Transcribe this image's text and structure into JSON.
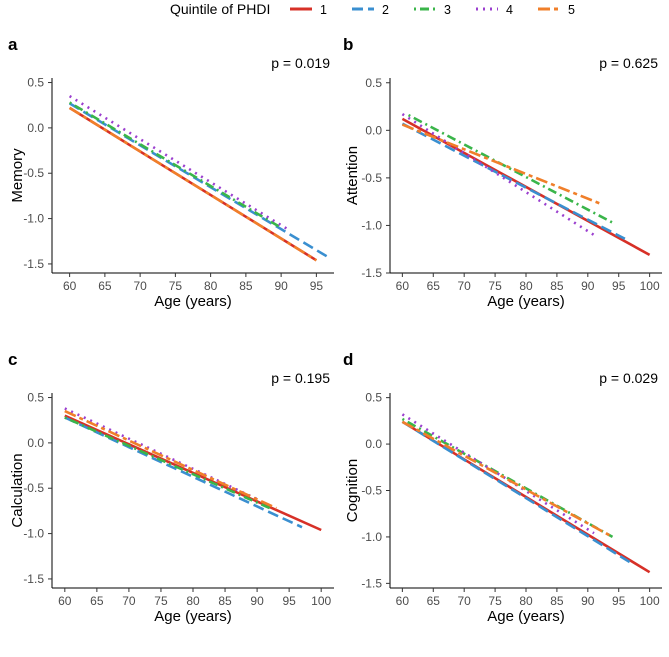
{
  "legend": {
    "title": "Quintile of PHDI",
    "entries": [
      {
        "label": "1",
        "color": "#d73027",
        "dash": "solid"
      },
      {
        "label": "2",
        "color": "#3a8fd0",
        "dash": "longdash"
      },
      {
        "label": "3",
        "color": "#3ab54a",
        "dash": "dotdash"
      },
      {
        "label": "4",
        "color": "#9b3fcf",
        "dash": "dotted"
      },
      {
        "label": "5",
        "color": "#f07f2a",
        "dash": "twodash"
      }
    ]
  },
  "chart_data": [
    {
      "type": "line",
      "panel": "a",
      "title": "",
      "p_value": "p = 0.019",
      "xlabel": "Age (years)",
      "ylabel": "Memory",
      "xlim": [
        57.5,
        97.5
      ],
      "ylim": [
        -1.6,
        0.55
      ],
      "xticks": [
        60,
        65,
        70,
        75,
        80,
        85,
        90,
        95
      ],
      "yticks": [
        0.5,
        0.0,
        -0.5,
        -1.0,
        -1.5
      ],
      "ytick_labels": [
        "0.5",
        "0.0",
        "-0.5",
        "-1.0",
        "-1.5"
      ],
      "series": [
        {
          "name": "1",
          "x": [
            60,
            95
          ],
          "y": [
            0.22,
            -1.46
          ]
        },
        {
          "name": "2",
          "x": [
            60,
            97
          ],
          "y": [
            0.27,
            -1.44
          ]
        },
        {
          "name": "3",
          "x": [
            60,
            90
          ],
          "y": [
            0.28,
            -1.1
          ]
        },
        {
          "name": "4",
          "x": [
            60,
            91
          ],
          "y": [
            0.35,
            -1.12
          ]
        },
        {
          "name": "5",
          "x": [
            60,
            95
          ],
          "y": [
            0.22,
            -1.46
          ]
        }
      ]
    },
    {
      "type": "line",
      "panel": "b",
      "title": "",
      "p_value": "p = 0.625",
      "xlabel": "Age (years)",
      "ylabel": "Attention",
      "xlim": [
        58.0,
        102.0
      ],
      "ylim": [
        -1.5,
        0.55
      ],
      "xticks": [
        60,
        65,
        70,
        75,
        80,
        85,
        90,
        95,
        100
      ],
      "yticks": [
        0.5,
        0.0,
        -0.5,
        -1.0,
        -1.5
      ],
      "ytick_labels": [
        "0.5",
        "0.0",
        "-0.5",
        "-1.0",
        "-1.5"
      ],
      "series": [
        {
          "name": "1",
          "x": [
            60,
            100
          ],
          "y": [
            0.12,
            -1.31
          ]
        },
        {
          "name": "2",
          "x": [
            60,
            96
          ],
          "y": [
            0.07,
            -1.14
          ]
        },
        {
          "name": "3",
          "x": [
            61,
            94
          ],
          "y": [
            0.16,
            -0.97
          ]
        },
        {
          "name": "4",
          "x": [
            60,
            91
          ],
          "y": [
            0.17,
            -1.1
          ]
        },
        {
          "name": "5",
          "x": [
            60,
            92
          ],
          "y": [
            0.06,
            -0.77
          ]
        }
      ]
    },
    {
      "type": "line",
      "panel": "c",
      "title": "",
      "p_value": "p = 0.195",
      "xlabel": "Age (years)",
      "ylabel": "Calculation",
      "xlim": [
        58.0,
        102.0
      ],
      "ylim": [
        -1.6,
        0.55
      ],
      "xticks": [
        60,
        65,
        70,
        75,
        80,
        85,
        90,
        95,
        100
      ],
      "yticks": [
        0.5,
        0.0,
        -0.5,
        -1.0,
        -1.5
      ],
      "ytick_labels": [
        "0.5",
        "0.0",
        "-0.5",
        "-1.0",
        "-1.5"
      ],
      "series": [
        {
          "name": "1",
          "x": [
            60,
            100
          ],
          "y": [
            0.3,
            -0.96
          ]
        },
        {
          "name": "2",
          "x": [
            60,
            97
          ],
          "y": [
            0.28,
            -0.93
          ]
        },
        {
          "name": "3",
          "x": [
            60,
            92
          ],
          "y": [
            0.28,
            -0.72
          ]
        },
        {
          "name": "4",
          "x": [
            60,
            90
          ],
          "y": [
            0.38,
            -0.62
          ]
        },
        {
          "name": "5",
          "x": [
            60,
            93
          ],
          "y": [
            0.35,
            -0.72
          ]
        }
      ]
    },
    {
      "type": "line",
      "panel": "d",
      "title": "",
      "p_value": "p = 0.029",
      "xlabel": "Age (years)",
      "ylabel": "Cognition",
      "xlim": [
        58.0,
        102.0
      ],
      "ylim": [
        -1.55,
        0.55
      ],
      "xticks": [
        60,
        65,
        70,
        75,
        80,
        85,
        90,
        95,
        100
      ],
      "yticks": [
        0.5,
        0.0,
        -0.5,
        -1.0,
        -1.5
      ],
      "ytick_labels": [
        "0.5",
        "0.0",
        "-0.5",
        "-1.0",
        "-1.5"
      ],
      "series": [
        {
          "name": "1",
          "x": [
            60,
            100
          ],
          "y": [
            0.24,
            -1.38
          ]
        },
        {
          "name": "2",
          "x": [
            60,
            97
          ],
          "y": [
            0.24,
            -1.28
          ]
        },
        {
          "name": "3",
          "x": [
            60,
            94
          ],
          "y": [
            0.27,
            -1.0
          ]
        },
        {
          "name": "4",
          "x": [
            60,
            91
          ],
          "y": [
            0.32,
            -0.96
          ]
        },
        {
          "name": "5",
          "x": [
            60,
            94
          ],
          "y": [
            0.24,
            -1.0
          ]
        }
      ]
    }
  ]
}
